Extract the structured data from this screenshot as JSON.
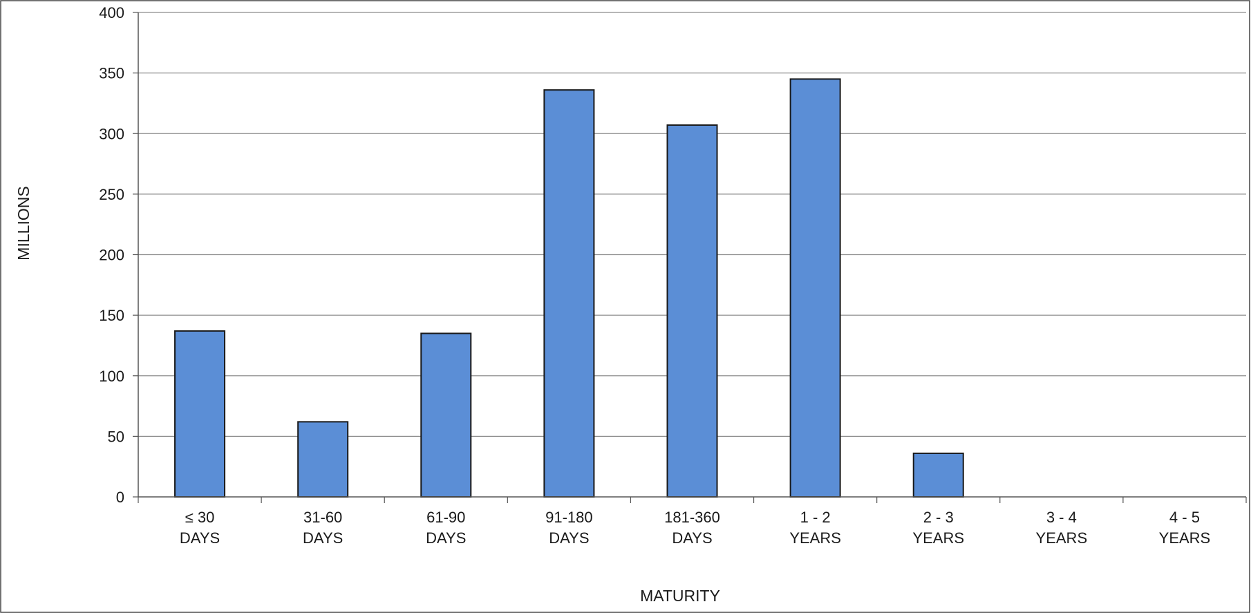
{
  "chart_data": {
    "type": "bar",
    "categories": [
      [
        "≤ 30",
        "DAYS"
      ],
      [
        "31-60",
        "DAYS"
      ],
      [
        "61-90",
        "DAYS"
      ],
      [
        "91-180",
        "DAYS"
      ],
      [
        "181-360",
        "DAYS"
      ],
      [
        "1 - 2",
        "YEARS"
      ],
      [
        "2 - 3",
        "YEARS"
      ],
      [
        "3 - 4",
        "YEARS"
      ],
      [
        "4 - 5",
        "YEARS"
      ]
    ],
    "values": [
      137,
      62,
      135,
      336,
      307,
      345,
      36,
      0,
      0
    ],
    "xlabel": "MATURITY",
    "ylabel": "MILLIONS",
    "ylim": [
      0,
      400
    ],
    "yticks": [
      0,
      50,
      100,
      150,
      200,
      250,
      300,
      350,
      400
    ],
    "grid": true,
    "legend": "none",
    "colors": {
      "bar_fill": "#5b8ed6",
      "bar_stroke": "#1a1a1a",
      "grid": "#8c8c8c",
      "axis": "#555555",
      "frame": "#444444"
    }
  }
}
